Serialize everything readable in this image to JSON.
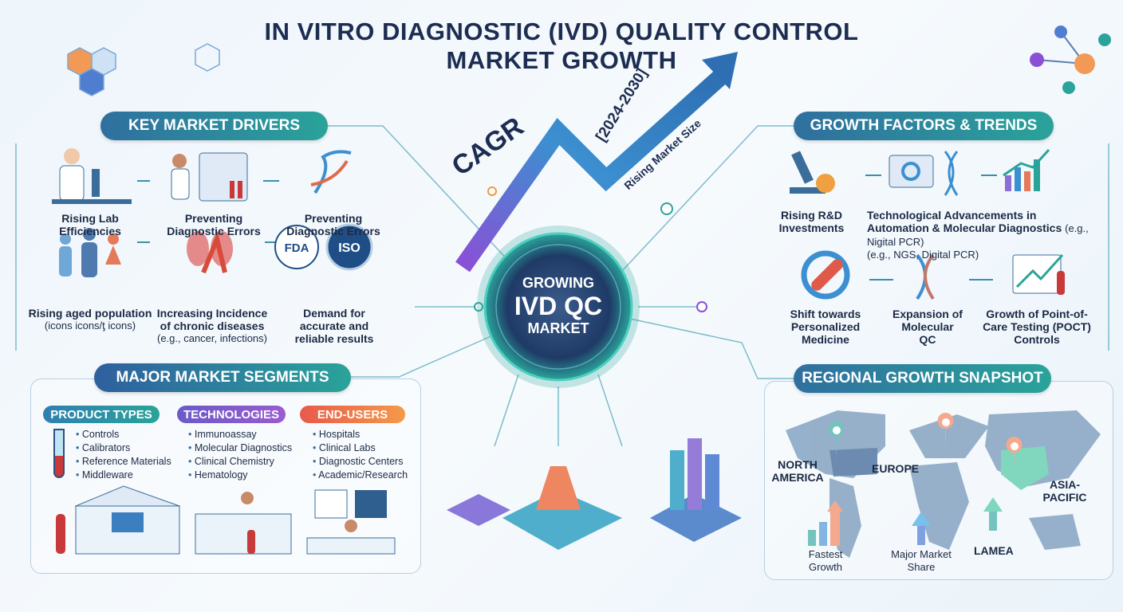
{
  "title": {
    "line1": "IN VITRO DIAGNOSTIC (IVD) QUALITY CONTROL",
    "line2": "MARKET GROWTH"
  },
  "center": {
    "line1": "GROWING",
    "line2": "IVD QC",
    "line3": "MARKET"
  },
  "growth_arrow": {
    "cagr": "CAGR",
    "period": "[2024-2030]",
    "caption": "Rising Market Size"
  },
  "drivers": {
    "heading": "KEY MARKET DRIVERS",
    "items": [
      {
        "title": "Rising Lab Efficiencies",
        "icon": "scientist-microscope-icon"
      },
      {
        "title": "Preventing Diagnostic Errors",
        "icon": "lab-analyzer-icon"
      },
      {
        "title": "Preventing Diagnostic Errors",
        "icon": "dna-icon"
      },
      {
        "title": "Rising aged population",
        "note": "(icons icons/ƫ icons)",
        "icon": "people-icon"
      },
      {
        "title": "Increasing Incidence of chronic diseases",
        "note": "(e.g., cancer, infections)",
        "icon": "lungs-ribbon-icon"
      },
      {
        "title": "Demand for accurate and reliable results",
        "icon": "fda-iso-seal-icon",
        "seals": [
          "FDA",
          "ISO"
        ]
      }
    ]
  },
  "growth": {
    "heading": "GROWTH FACTORS & TRENDS",
    "items": [
      {
        "title": "Rising R&D Investments",
        "icon": "microscope-coin-icon"
      },
      {
        "title": "Technological Advancements in Automation & Molecular Diagnostics",
        "note1": "(e.g., Nigital PCR)",
        "note2": "(e.g., NGS, Digital PCR)",
        "icon": "gear-dna-icon"
      },
      {
        "title": "Shift towards Personalized Medicine",
        "icon": "capsule-dna-icon"
      },
      {
        "title": "Expansion of Molecular QC",
        "icon": "dna-icon"
      },
      {
        "title": "Growth of Point-of-Care Testing (POCT) Controls",
        "icon": "chart-tube-icon"
      }
    ]
  },
  "segments": {
    "heading": "MAJOR MARKET SEGMENTS",
    "groups": [
      {
        "label": "PRODUCT TYPES",
        "color": "#2f8fb0",
        "items": [
          "Controls",
          "Calibrators",
          "Reference Materials",
          "Middleware"
        ]
      },
      {
        "label": "TECHNOLOGIES",
        "color": "#7a5bc7",
        "items": [
          "Immunoassay",
          "Molecular Diagnostics",
          "Clinical Chemistry",
          "Hematology"
        ]
      },
      {
        "label": "END-USERS",
        "color": "#ee7a52",
        "items": [
          "Hospitals",
          "Clinical Labs",
          "Diagnostic Centers",
          "Academic/Research"
        ]
      }
    ]
  },
  "regional": {
    "heading": "REGIONAL GROWTH SNAPSHOT",
    "regions": [
      "NORTH AMERICA",
      "EUROPE",
      "ASIA-PACIFIC",
      "LAMEA"
    ],
    "indicators": [
      "Fastest Growth",
      "Major Market Share"
    ]
  },
  "colors": {
    "navy": "#1d2d52",
    "teal": "#2aa39a",
    "purple": "#7a5bc7",
    "orange": "#ee7a52",
    "map": "#4f7aa6"
  }
}
